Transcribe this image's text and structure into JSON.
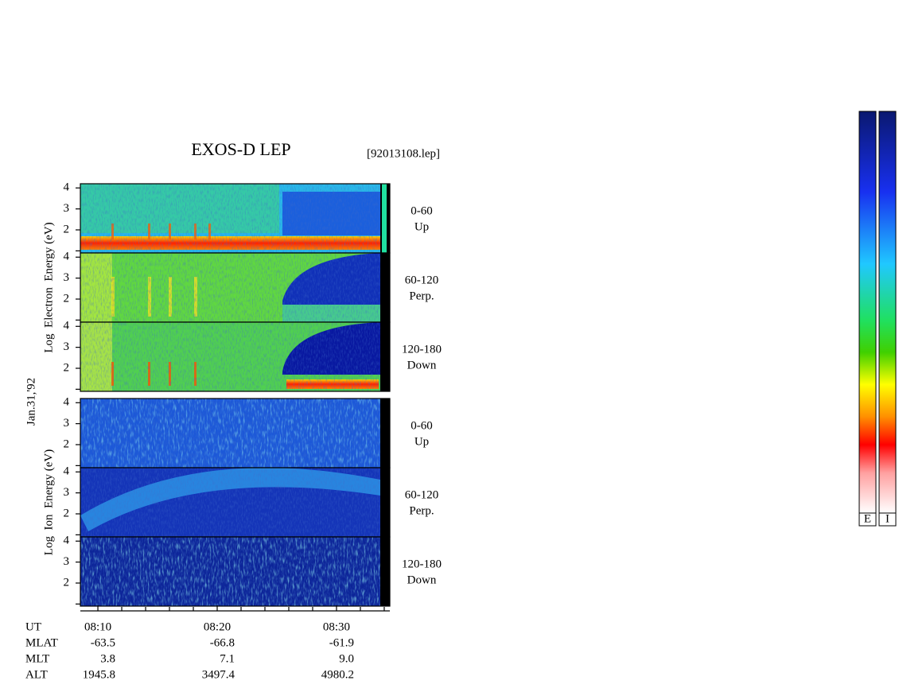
{
  "chart_data": {
    "type": "spectrogram",
    "title": "EXOS-D LEP",
    "subtitle": "[92013108.lep]",
    "date": "Jan.31,'92",
    "xlim": [
      8.53,
      34.47
    ],
    "xticks": [
      {
        "value": 10,
        "label": "08:10"
      },
      {
        "value": 20,
        "label": "08:20"
      },
      {
        "value": 30,
        "label": "08:30"
      }
    ],
    "xminorticks": [
      12,
      14,
      16,
      18,
      22,
      24,
      26,
      28,
      32,
      34
    ],
    "x_label": "UT",
    "ylim": [
      0.9,
      4.2
    ],
    "yticks": [
      2,
      3,
      4
    ],
    "yminorticks": [
      1
    ],
    "groups": [
      {
        "y_label": "Log  Electron  Energy (eV)",
        "panels": [
          {
            "label": [
              "0-60",
              "Up"
            ]
          },
          {
            "label": [
              "60-120",
              "Perp."
            ]
          },
          {
            "label": [
              "120-180",
              "Down"
            ]
          }
        ]
      },
      {
        "y_label": "Log  Ion  Energy (eV)",
        "panels": [
          {
            "label": [
              "0-60",
              "Up"
            ]
          },
          {
            "label": [
              "60-120",
              "Perp."
            ]
          },
          {
            "label": [
              "120-180",
              "Down"
            ]
          }
        ]
      }
    ],
    "orbit_rows": [
      {
        "label": "MLAT",
        "values": [
          "-63.5",
          "-66.8",
          "-61.9"
        ]
      },
      {
        "label": "MLT",
        "values": [
          "3.8",
          "7.1",
          "9.0"
        ]
      },
      {
        "label": "ALT",
        "values": [
          "1945.8",
          "3497.4",
          "4980.2"
        ]
      }
    ],
    "colorbar_labels": [
      "E",
      "I"
    ]
  }
}
